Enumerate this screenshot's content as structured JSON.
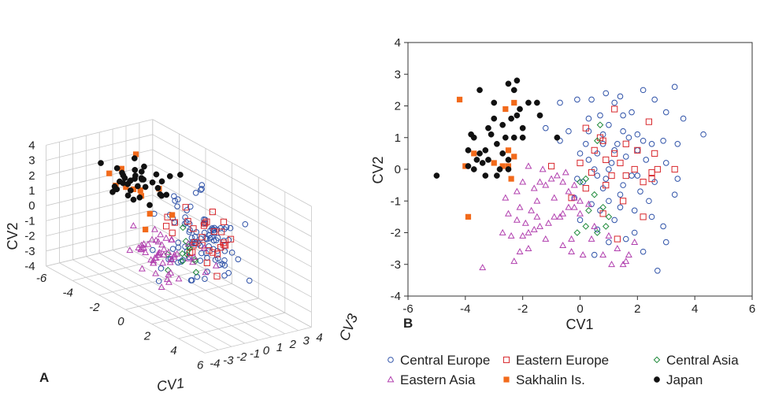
{
  "colors": {
    "central_europe": "#2f52a8",
    "eastern_europe": "#d8262b",
    "central_asia": "#1f8a3a",
    "eastern_asia": "#b13fae",
    "sakhalin": "#f26a1b",
    "japan": "#111111"
  },
  "chart_data": [
    {
      "panel": "A",
      "type": "scatter3d",
      "xlabel": "CV1",
      "ylabel": "CV2",
      "zlabel": "CV3",
      "x_ticks": [
        "-6",
        "-4",
        "-2",
        "0",
        "2",
        "4",
        "6"
      ],
      "y_ticks": [
        "4",
        "3",
        "2",
        "1",
        "0",
        "-1",
        "-2",
        "-3",
        "-4"
      ],
      "z_ticks": [
        "4",
        "3",
        "2",
        "1",
        "0",
        "-1",
        "-2",
        "-3",
        "-4"
      ],
      "xlim": [
        -6,
        6
      ],
      "ylim": [
        -4,
        4
      ],
      "zlim": [
        -4,
        4
      ],
      "grid": true,
      "series": [
        {
          "name": "Japan",
          "marker": "filled-circle",
          "color_key": "japan",
          "seed": 11,
          "count": 40,
          "cx": -3.6,
          "cy": 1.6,
          "cz": 0.8,
          "sx": 0.9,
          "sy": 0.7,
          "sz": 0.9
        },
        {
          "name": "Sakhalin Is.",
          "marker": "filled-square",
          "color_key": "sakhalin",
          "seed": 23,
          "count": 12,
          "cx": -3.2,
          "cy": 1.5,
          "cz": 0.9,
          "sx": 0.8,
          "sy": 1.0,
          "sz": 1.0
        },
        {
          "name": "Central Europe",
          "marker": "open-circle",
          "color_key": "central_europe",
          "seed": 37,
          "count": 95,
          "cx": 1.5,
          "cy": 0.4,
          "cz": 0.1,
          "sx": 1.2,
          "sy": 1.3,
          "sz": 1.1
        },
        {
          "name": "Eastern Europe",
          "marker": "open-square",
          "color_key": "eastern_europe",
          "seed": 41,
          "count": 30,
          "cx": 1.4,
          "cy": 0.6,
          "cz": 0.6,
          "sx": 1.0,
          "sy": 0.9,
          "sz": 1.0
        },
        {
          "name": "Central Asia",
          "marker": "open-diamond",
          "color_key": "central_asia",
          "seed": 53,
          "count": 12,
          "cx": 0.6,
          "cy": -0.6,
          "cz": 0.0,
          "sx": 0.5,
          "sy": 0.8,
          "sz": 0.6
        },
        {
          "name": "Eastern Asia",
          "marker": "open-triangle",
          "color_key": "eastern_asia",
          "seed": 67,
          "count": 55,
          "cx": -0.8,
          "cy": -1.6,
          "cz": -0.6,
          "sx": 1.0,
          "sy": 0.7,
          "sz": 0.8
        }
      ]
    },
    {
      "panel": "B",
      "type": "scatter",
      "xlabel": "CV1",
      "ylabel": "CV2",
      "x_ticks": [
        "-6",
        "-4",
        "-2",
        "0",
        "2",
        "4",
        "6"
      ],
      "y_ticks": [
        "4",
        "3",
        "2",
        "1",
        "0",
        "-1",
        "-2",
        "-3",
        "-4"
      ],
      "xlim": [
        -6,
        6
      ],
      "ylim": [
        -4,
        4
      ],
      "grid": false,
      "series": [
        {
          "name": "Japan",
          "marker": "filled-circle",
          "color_key": "japan",
          "points": [
            [
              -5.0,
              -0.2
            ],
            [
              -3.5,
              2.5
            ],
            [
              -2.5,
              2.7
            ],
            [
              -2.2,
              2.8
            ],
            [
              -3.7,
              1.0
            ],
            [
              -3.8,
              1.1
            ],
            [
              -3.3,
              0.6
            ],
            [
              -2.9,
              0.8
            ],
            [
              -3.5,
              0.5
            ],
            [
              -3.0,
              1.6
            ],
            [
              -2.7,
              1.4
            ],
            [
              -2.4,
              1.6
            ],
            [
              -3.2,
              1.3
            ],
            [
              -2.2,
              1.7
            ],
            [
              -1.8,
              2.1
            ],
            [
              -2.3,
              2.5
            ],
            [
              -2.1,
              1.9
            ],
            [
              -3.0,
              2.1
            ],
            [
              -3.9,
              0.6
            ],
            [
              -3.6,
              0.3
            ],
            [
              -3.2,
              0.3
            ],
            [
              -2.7,
              0.5
            ],
            [
              -2.8,
              0.0
            ],
            [
              -2.5,
              0.3
            ],
            [
              -2.9,
              -0.2
            ],
            [
              -2.3,
              1.0
            ],
            [
              -2.6,
              1.0
            ],
            [
              -2.0,
              1.0
            ],
            [
              -3.9,
              0.1
            ],
            [
              -3.4,
              0.2
            ],
            [
              -1.4,
              1.7
            ],
            [
              -1.5,
              2.1
            ],
            [
              -0.8,
              1.0
            ],
            [
              -3.1,
              1.1
            ],
            [
              -2.0,
              1.3
            ],
            [
              -2.5,
              0.0
            ],
            [
              -3.3,
              -0.2
            ],
            [
              -3.7,
              0.0
            ]
          ]
        },
        {
          "name": "Sakhalin Is.",
          "marker": "filled-square",
          "color_key": "sakhalin",
          "points": [
            [
              -4.2,
              2.2
            ],
            [
              -2.3,
              2.1
            ],
            [
              -2.6,
              1.9
            ],
            [
              -3.7,
              0.5
            ],
            [
              -3.0,
              0.2
            ],
            [
              -2.5,
              0.6
            ],
            [
              -2.7,
              0.1
            ],
            [
              -4.0,
              0.1
            ],
            [
              -2.5,
              0.1
            ],
            [
              -2.4,
              -0.3
            ],
            [
              -3.9,
              -1.5
            ],
            [
              -2.3,
              0.4
            ]
          ]
        },
        {
          "name": "Central Europe",
          "marker": "open-circle",
          "color_key": "central_europe",
          "points": [
            [
              3.3,
              2.6
            ],
            [
              2.2,
              2.5
            ],
            [
              3.0,
              1.8
            ],
            [
              3.6,
              1.6
            ],
            [
              4.3,
              1.1
            ],
            [
              3.4,
              0.8
            ],
            [
              2.5,
              0.8
            ],
            [
              2.0,
              1.1
            ],
            [
              1.5,
              1.2
            ],
            [
              1.0,
              1.4
            ],
            [
              0.7,
              1.7
            ],
            [
              0.4,
              2.2
            ],
            [
              -0.1,
              2.2
            ],
            [
              0.3,
              1.6
            ],
            [
              -0.4,
              1.2
            ],
            [
              -0.7,
              0.9
            ],
            [
              -1.2,
              1.3
            ],
            [
              -0.7,
              2.1
            ],
            [
              1.5,
              1.7
            ],
            [
              1.8,
              1.8
            ],
            [
              1.2,
              2.1
            ],
            [
              1.4,
              2.3
            ],
            [
              0.9,
              2.4
            ],
            [
              0.8,
              1.1
            ],
            [
              0.2,
              0.8
            ],
            [
              0.3,
              0.3
            ],
            [
              0.6,
              0.5
            ],
            [
              1.3,
              0.8
            ],
            [
              1.6,
              0.4
            ],
            [
              2.0,
              0.6
            ],
            [
              2.3,
              0.3
            ],
            [
              2.6,
              -0.4
            ],
            [
              3.0,
              0.2
            ],
            [
              3.3,
              -0.8
            ],
            [
              2.9,
              -1.8
            ],
            [
              3.0,
              -2.3
            ],
            [
              2.5,
              -1.5
            ],
            [
              2.2,
              -2.6
            ],
            [
              1.6,
              -2.2
            ],
            [
              1.2,
              -1.6
            ],
            [
              1.0,
              -1.0
            ],
            [
              1.4,
              -0.8
            ],
            [
              0.8,
              -0.6
            ],
            [
              0.6,
              -0.2
            ],
            [
              0.1,
              -0.4
            ],
            [
              -0.1,
              -0.3
            ],
            [
              0.0,
              0.5
            ],
            [
              0.5,
              0.0
            ],
            [
              1.1,
              0.2
            ],
            [
              1.8,
              -0.2
            ],
            [
              2.1,
              -0.7
            ],
            [
              1.9,
              -1.3
            ],
            [
              2.4,
              -1.0
            ],
            [
              1.5,
              -0.5
            ],
            [
              0.8,
              0.8
            ],
            [
              2.6,
              2.2
            ],
            [
              2.7,
              -3.2
            ],
            [
              1.9,
              -2.0
            ],
            [
              0.5,
              -2.7
            ],
            [
              1.0,
              0.0
            ],
            [
              0.3,
              1.2
            ],
            [
              1.7,
              1.0
            ],
            [
              1.2,
              0.6
            ],
            [
              0.9,
              -0.3
            ],
            [
              1.4,
              -1.2
            ],
            [
              0.7,
              -1.3
            ],
            [
              2.0,
              -0.2
            ],
            [
              2.2,
              0.9
            ],
            [
              0.4,
              -1.1
            ],
            [
              -0.2,
              -0.9
            ],
            [
              0.0,
              -1.6
            ],
            [
              0.6,
              -1.9
            ],
            [
              1.0,
              -2.3
            ],
            [
              2.9,
              0.9
            ],
            [
              3.4,
              -0.3
            ]
          ]
        },
        {
          "name": "Eastern Europe",
          "marker": "open-square",
          "color_key": "eastern_europe",
          "points": [
            [
              1.2,
              1.9
            ],
            [
              2.4,
              1.5
            ],
            [
              0.2,
              1.3
            ],
            [
              0.7,
              1.0
            ],
            [
              1.6,
              0.8
            ],
            [
              2.0,
              0.6
            ],
            [
              2.6,
              0.5
            ],
            [
              1.2,
              0.5
            ],
            [
              0.5,
              0.6
            ],
            [
              0.9,
              0.3
            ],
            [
              1.4,
              0.2
            ],
            [
              1.9,
              0.0
            ],
            [
              2.5,
              -0.1
            ],
            [
              2.7,
              0.0
            ],
            [
              2.2,
              -0.4
            ],
            [
              1.6,
              -0.2
            ],
            [
              3.3,
              0.0
            ],
            [
              0.4,
              -0.1
            ],
            [
              0.9,
              -0.5
            ],
            [
              1.5,
              -1.0
            ],
            [
              0.8,
              -1.4
            ],
            [
              1.1,
              -0.2
            ],
            [
              0.0,
              0.2
            ],
            [
              -1.0,
              0.1
            ],
            [
              0.2,
              -0.6
            ],
            [
              0.8,
              0.9
            ],
            [
              -0.3,
              -0.9
            ],
            [
              1.3,
              -2.2
            ],
            [
              2.2,
              -1.5
            ],
            [
              2.5,
              -0.3
            ]
          ]
        },
        {
          "name": "Central Asia",
          "marker": "open-diamond",
          "color_key": "central_asia",
          "points": [
            [
              0.7,
              1.4
            ],
            [
              0.6,
              0.9
            ],
            [
              0.2,
              -0.3
            ],
            [
              0.0,
              -0.4
            ],
            [
              0.5,
              -0.8
            ],
            [
              0.8,
              -1.2
            ],
            [
              1.0,
              -1.5
            ],
            [
              0.9,
              -1.8
            ],
            [
              0.6,
              -2.0
            ],
            [
              0.2,
              -1.8
            ],
            [
              -0.1,
              -2.0
            ],
            [
              0.3,
              -1.3
            ]
          ]
        },
        {
          "name": "Eastern Asia",
          "marker": "open-triangle",
          "color_key": "eastern_asia",
          "points": [
            [
              -3.4,
              -3.1
            ],
            [
              -2.7,
              -2.0
            ],
            [
              -2.4,
              -2.1
            ],
            [
              -2.0,
              -2.1
            ],
            [
              -1.8,
              -2.0
            ],
            [
              -1.6,
              -1.9
            ],
            [
              -1.4,
              -1.8
            ],
            [
              -1.1,
              -1.7
            ],
            [
              -0.9,
              -1.5
            ],
            [
              -0.7,
              -1.5
            ],
            [
              -0.6,
              -1.4
            ],
            [
              -0.4,
              -1.2
            ],
            [
              -0.2,
              -1.2
            ],
            [
              -2.1,
              -1.2
            ],
            [
              -2.6,
              -0.9
            ],
            [
              -2.2,
              -0.7
            ],
            [
              -1.6,
              -0.6
            ],
            [
              -1.4,
              -0.4
            ],
            [
              -1.2,
              -0.5
            ],
            [
              -1.0,
              -0.3
            ],
            [
              -0.8,
              -0.2
            ],
            [
              -0.6,
              -0.4
            ],
            [
              -0.4,
              -0.7
            ],
            [
              -0.2,
              -0.9
            ],
            [
              0.0,
              -1.0
            ],
            [
              0.3,
              -1.1
            ],
            [
              -1.8,
              0.1
            ],
            [
              -1.3,
              0.0
            ],
            [
              -2.0,
              -0.4
            ],
            [
              -1.5,
              -1.0
            ],
            [
              -0.5,
              -0.1
            ],
            [
              -0.9,
              -0.9
            ],
            [
              -0.2,
              -0.5
            ],
            [
              -2.1,
              -2.6
            ],
            [
              -1.8,
              -2.5
            ],
            [
              -2.3,
              -2.9
            ],
            [
              -0.6,
              -2.4
            ],
            [
              -0.3,
              -2.6
            ],
            [
              0.1,
              -2.7
            ],
            [
              0.4,
              -2.2
            ],
            [
              1.0,
              -2.1
            ],
            [
              1.3,
              -2.5
            ],
            [
              0.8,
              -2.7
            ],
            [
              1.6,
              -2.9
            ],
            [
              1.9,
              -2.3
            ],
            [
              1.5,
              -3.0
            ],
            [
              1.7,
              -2.7
            ],
            [
              1.1,
              -3.0
            ],
            [
              0.5,
              -1.8
            ],
            [
              -0.3,
              -2.2
            ],
            [
              0.0,
              -1.4
            ],
            [
              -1.2,
              -2.2
            ],
            [
              -1.5,
              -1.5
            ],
            [
              -1.9,
              -1.7
            ],
            [
              -1.7,
              -1.3
            ],
            [
              -2.2,
              -1.6
            ],
            [
              -2.5,
              -1.4
            ]
          ]
        }
      ]
    }
  ],
  "legend": {
    "items": [
      {
        "label": "Central Europe",
        "marker": "open-circle",
        "color_key": "central_europe"
      },
      {
        "label": "Eastern Europe",
        "marker": "open-square",
        "color_key": "eastern_europe"
      },
      {
        "label": "Central Asia",
        "marker": "open-diamond",
        "color_key": "central_asia"
      },
      {
        "label": "Eastern Asia",
        "marker": "open-triangle",
        "color_key": "eastern_asia"
      },
      {
        "label": "Sakhalin Is.",
        "marker": "filled-square",
        "color_key": "sakhalin"
      },
      {
        "label": "Japan",
        "marker": "filled-circle",
        "color_key": "japan"
      }
    ]
  }
}
